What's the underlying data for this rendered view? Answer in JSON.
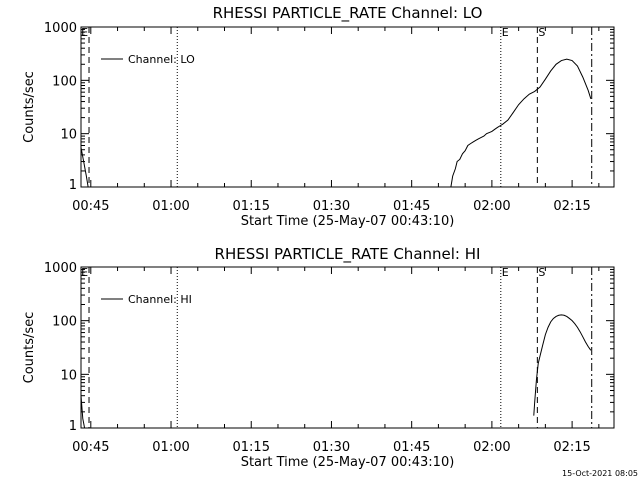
{
  "footer_timestamp": "15-Oct-2021 08:05",
  "chart_data": [
    {
      "type": "line",
      "title": "RHESSI PARTICLE_RATE Channel: LO",
      "xlabel": "Start Time (25-May-07 00:43:10)",
      "ylabel": "Counts/sec",
      "y_scale": "log",
      "ylim": [
        1,
        1000
      ],
      "y_ticks": [
        1,
        10,
        100,
        1000
      ],
      "y_tick_labels": [
        "1",
        "10",
        "100",
        "1000"
      ],
      "xlim": [
        "00:43:10",
        "02:22:50"
      ],
      "x_ticks": [
        "00:45",
        "01:00",
        "01:15",
        "01:30",
        "01:45",
        "02:00",
        "02:15"
      ],
      "legend": {
        "entries": [
          "Channel: LO"
        ],
        "position": "upper-left"
      },
      "markers": [
        {
          "label": "E",
          "time": "00:44:40",
          "style": "dashed",
          "label_anchor": "end"
        },
        {
          "label": "",
          "time": "01:01:10",
          "style": "dotted"
        },
        {
          "label": "E",
          "time": "02:01:40",
          "style": "dotted"
        },
        {
          "label": "S",
          "time": "02:08:30",
          "style": "dashed"
        },
        {
          "label": "",
          "time": "02:18:40",
          "style": "dashdot"
        }
      ],
      "series": [
        {
          "name": "Channel: LO",
          "segments": [
            [
              [
                "00:43:10",
                5.5
              ],
              [
                "00:43:40",
                3.0
              ],
              [
                "00:44:10",
                1.6
              ],
              [
                "00:44:30",
                1.0
              ]
            ],
            [
              [
                "01:52:20",
                1.0
              ],
              [
                "01:52:40",
                1.6
              ],
              [
                "01:53:10",
                2.2
              ],
              [
                "01:53:30",
                3.0
              ],
              [
                "01:54:00",
                3.3
              ],
              [
                "01:54:30",
                4.2
              ],
              [
                "01:55:00",
                4.8
              ],
              [
                "01:55:30",
                6.0
              ],
              [
                "01:56:00",
                6.5
              ],
              [
                "01:56:30",
                7.0
              ],
              [
                "01:57:00",
                7.5
              ],
              [
                "01:57:30",
                8.0
              ],
              [
                "01:58:00",
                8.5
              ],
              [
                "01:58:30",
                9.0
              ],
              [
                "01:59:00",
                10
              ],
              [
                "01:59:30",
                10.5
              ],
              [
                "02:00:00",
                11
              ],
              [
                "02:00:30",
                12
              ],
              [
                "02:01:00",
                13
              ],
              [
                "02:01:30",
                14
              ],
              [
                "02:02:00",
                15
              ],
              [
                "02:03:00",
                18
              ],
              [
                "02:04:00",
                25
              ],
              [
                "02:05:00",
                35
              ],
              [
                "02:06:00",
                45
              ],
              [
                "02:07:00",
                55
              ],
              [
                "02:08:00",
                62
              ],
              [
                "02:09:00",
                75
              ],
              [
                "02:10:00",
                105
              ],
              [
                "02:11:00",
                150
              ],
              [
                "02:12:00",
                200
              ],
              [
                "02:13:00",
                235
              ],
              [
                "02:14:00",
                250
              ],
              [
                "02:15:00",
                235
              ],
              [
                "02:16:00",
                185
              ],
              [
                "02:17:00",
                115
              ],
              [
                "02:18:00",
                65
              ],
              [
                "02:18:30",
                45
              ]
            ]
          ]
        }
      ]
    },
    {
      "type": "line",
      "title": "RHESSI PARTICLE_RATE Channel: HI",
      "xlabel": "Start Time (25-May-07 00:43:10)",
      "ylabel": "Counts/sec",
      "y_scale": "log",
      "ylim": [
        1,
        1000
      ],
      "y_ticks": [
        1,
        10,
        100,
        1000
      ],
      "y_tick_labels": [
        "1",
        "10",
        "100",
        "1000"
      ],
      "xlim": [
        "00:43:10",
        "02:22:50"
      ],
      "x_ticks": [
        "00:45",
        "01:00",
        "01:15",
        "01:30",
        "01:45",
        "02:00",
        "02:15"
      ],
      "legend": {
        "entries": [
          "Channel: HI"
        ],
        "position": "upper-left"
      },
      "markers": [
        {
          "label": "E",
          "time": "00:44:40",
          "style": "dashed",
          "label_anchor": "end"
        },
        {
          "label": "",
          "time": "01:01:10",
          "style": "dotted"
        },
        {
          "label": "E",
          "time": "02:01:40",
          "style": "dotted"
        },
        {
          "label": "S",
          "time": "02:08:30",
          "style": "dashed"
        },
        {
          "label": "",
          "time": "02:18:40",
          "style": "dashdot"
        }
      ],
      "series": [
        {
          "name": "Channel: HI",
          "segments": [
            [
              [
                "00:43:10",
                4.0
              ],
              [
                "00:43:30",
                1.5
              ],
              [
                "00:43:50",
                1.0
              ]
            ],
            [
              [
                "02:07:50",
                1.7
              ],
              [
                "02:08:00",
                3.0
              ],
              [
                "02:08:20",
                8.0
              ],
              [
                "02:08:40",
                16
              ],
              [
                "02:09:00",
                22
              ],
              [
                "02:09:30",
                35
              ],
              [
                "02:10:00",
                55
              ],
              [
                "02:10:30",
                75
              ],
              [
                "02:11:00",
                95
              ],
              [
                "02:11:30",
                110
              ],
              [
                "02:12:00",
                120
              ],
              [
                "02:12:30",
                126
              ],
              [
                "02:13:00",
                128
              ],
              [
                "02:13:30",
                126
              ],
              [
                "02:14:00",
                120
              ],
              [
                "02:14:30",
                110
              ],
              [
                "02:15:00",
                100
              ],
              [
                "02:15:30",
                88
              ],
              [
                "02:16:00",
                75
              ],
              [
                "02:16:30",
                62
              ],
              [
                "02:17:00",
                50
              ],
              [
                "02:17:30",
                40
              ],
              [
                "02:18:00",
                33
              ],
              [
                "02:18:30",
                28
              ]
            ]
          ]
        }
      ]
    }
  ]
}
